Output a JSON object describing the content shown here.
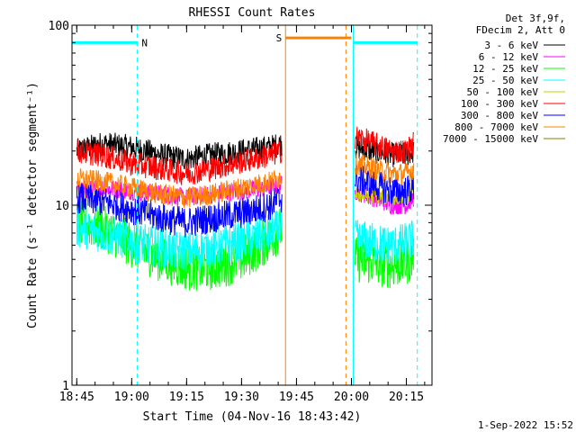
{
  "chart_data": {
    "type": "line",
    "title": "RHESSI Count Rates",
    "xlabel": "Start Time (04-Nov-16 18:43:42)",
    "ylabel": "Count Rate (s⁻¹ detector segment⁻¹)",
    "y_scale": "log",
    "xlim": [
      "18:43:42",
      "20:22:00"
    ],
    "ylim": [
      1,
      100
    ],
    "x_ticks": [
      "18:45",
      "19:00",
      "19:15",
      "19:30",
      "19:45",
      "20:00",
      "20:15"
    ],
    "y_ticks": [
      "1",
      "10",
      "100"
    ],
    "legend": {
      "placement": "top-right",
      "header": [
        "Det 3f,9f,",
        "FDecim 2, Att 0"
      ]
    },
    "series": [
      {
        "name": "3 - 6 keV",
        "color": "#000000",
        "segments": [
          {
            "x": [
              "18:45",
              "18:52",
              "19:00",
              "19:08",
              "19:15",
              "19:22",
              "19:30",
              "19:38",
              "19:41"
            ],
            "y": [
              20,
              22,
              21,
              19,
              18,
              19,
              20,
              21,
              22
            ]
          },
          {
            "x": [
              "20:01",
              "20:06",
              "20:11",
              "20:15",
              "20:17"
            ],
            "y": [
              21,
              20,
              19,
              19,
              20
            ]
          }
        ]
      },
      {
        "name": "6 - 12 keV",
        "color": "#ff00ff",
        "segments": [
          {
            "x": [
              "18:45",
              "18:52",
              "19:00",
              "19:08",
              "19:15",
              "19:22",
              "19:30",
              "19:38",
              "19:41"
            ],
            "y": [
              12,
              12.5,
              12,
              11.5,
              11,
              11.5,
              12,
              12.5,
              13
            ]
          },
          {
            "x": [
              "20:01",
              "20:06",
              "20:11",
              "20:15",
              "20:17"
            ],
            "y": [
              12,
              11,
              10,
              10,
              11
            ]
          }
        ]
      },
      {
        "name": "12 - 25 keV",
        "color": "#00ff00",
        "segments": [
          {
            "x": [
              "18:45",
              "18:52",
              "19:00",
              "19:08",
              "19:15",
              "19:22",
              "19:30",
              "19:38",
              "19:41"
            ],
            "y": [
              8,
              7.5,
              6,
              5,
              4.5,
              4.5,
              5,
              6.5,
              7.5
            ]
          },
          {
            "x": [
              "20:01",
              "20:06",
              "20:11",
              "20:15",
              "20:17"
            ],
            "y": [
              5,
              4.8,
              4.6,
              4.8,
              5.2
            ]
          }
        ]
      },
      {
        "name": "25 - 50 keV",
        "color": "#00ffff",
        "segments": [
          {
            "x": [
              "18:45",
              "18:52",
              "19:00",
              "19:08",
              "19:15",
              "19:22",
              "19:30",
              "19:38",
              "19:41"
            ],
            "y": [
              7.5,
              7,
              6.3,
              5.8,
              5.5,
              5.8,
              6.3,
              7,
              7.5
            ]
          },
          {
            "x": [
              "20:01",
              "20:06",
              "20:11",
              "20:15",
              "20:17"
            ],
            "y": [
              6.5,
              6.2,
              6,
              6.2,
              6.5
            ]
          }
        ]
      },
      {
        "name": "50 - 100 keV",
        "color": "#cccc00",
        "segments": [
          {
            "x": [
              "20:01",
              "20:06",
              "20:11",
              "20:15",
              "20:17"
            ],
            "y": [
              11.5,
              11.2,
              11,
              11.2,
              11.5
            ]
          }
        ]
      },
      {
        "name": "100 - 300 keV",
        "color": "#ff0000",
        "segments": [
          {
            "x": [
              "18:45",
              "18:52",
              "19:00",
              "19:08",
              "19:15",
              "19:22",
              "19:30",
              "19:38",
              "19:41"
            ],
            "y": [
              20,
              19,
              17,
              16,
              15,
              16,
              17.5,
              19,
              20
            ]
          },
          {
            "x": [
              "20:01",
              "20:06",
              "20:11",
              "20:15",
              "20:17"
            ],
            "y": [
              24,
              22,
              20,
              20,
              22
            ]
          }
        ]
      },
      {
        "name": "300 - 800 keV",
        "color": "#0000ff",
        "segments": [
          {
            "x": [
              "18:45",
              "18:52",
              "19:00",
              "19:08",
              "19:15",
              "19:22",
              "19:30",
              "19:38",
              "19:41"
            ],
            "y": [
              11,
              10.5,
              9.5,
              8.5,
              8,
              8.5,
              9,
              10,
              11
            ]
          },
          {
            "x": [
              "20:01",
              "20:06",
              "20:11",
              "20:15",
              "20:17"
            ],
            "y": [
              14,
              13,
              12,
              12,
              12.5
            ]
          }
        ]
      },
      {
        "name": "800 - 7000 keV",
        "color": "#ff8000",
        "segments": [
          {
            "x": [
              "18:45",
              "18:52",
              "19:00",
              "19:08",
              "19:15",
              "19:22",
              "19:30",
              "19:38",
              "19:41"
            ],
            "y": [
              14,
              13.5,
              12.5,
              11.5,
              11,
              11.5,
              12.5,
              13.5,
              14.5
            ]
          },
          {
            "x": [
              "20:01",
              "20:06",
              "20:11",
              "20:15",
              "20:17"
            ],
            "y": [
              17,
              16,
              15,
              15,
              16
            ]
          }
        ]
      },
      {
        "name": "7000 - 15000 keV",
        "color": "#808000",
        "segments": []
      }
    ],
    "attenuator_bars": [
      {
        "label": "N",
        "color": "#00ffff",
        "x": [
          "18:43:42",
          "19:01:30"
        ],
        "y": 80
      },
      {
        "label": "S",
        "color": "#ff8000",
        "x": [
          "19:42:00",
          "20:00:00"
        ],
        "y": 85
      },
      {
        "label": "",
        "color": "#00ffff",
        "x": [
          "20:00:30",
          "20:18:00"
        ],
        "y": 80
      }
    ],
    "vertical_lines": [
      {
        "x": "18:43:42",
        "color": "#00ffff",
        "style": "solid"
      },
      {
        "x": "19:01:30",
        "color": "#00ffff",
        "style": "dashed"
      },
      {
        "x": "19:42:00",
        "color": "#ff8000",
        "style": "solid"
      },
      {
        "x": "19:58:30",
        "color": "#ff8000",
        "style": "dashed"
      },
      {
        "x": "20:00:30",
        "color": "#00ffff",
        "style": "solid"
      },
      {
        "x": "20:18:00",
        "color": "#00ffff",
        "style": "dashed"
      }
    ]
  },
  "footer": {
    "date_stamp": "1-Sep-2022 15:52"
  }
}
